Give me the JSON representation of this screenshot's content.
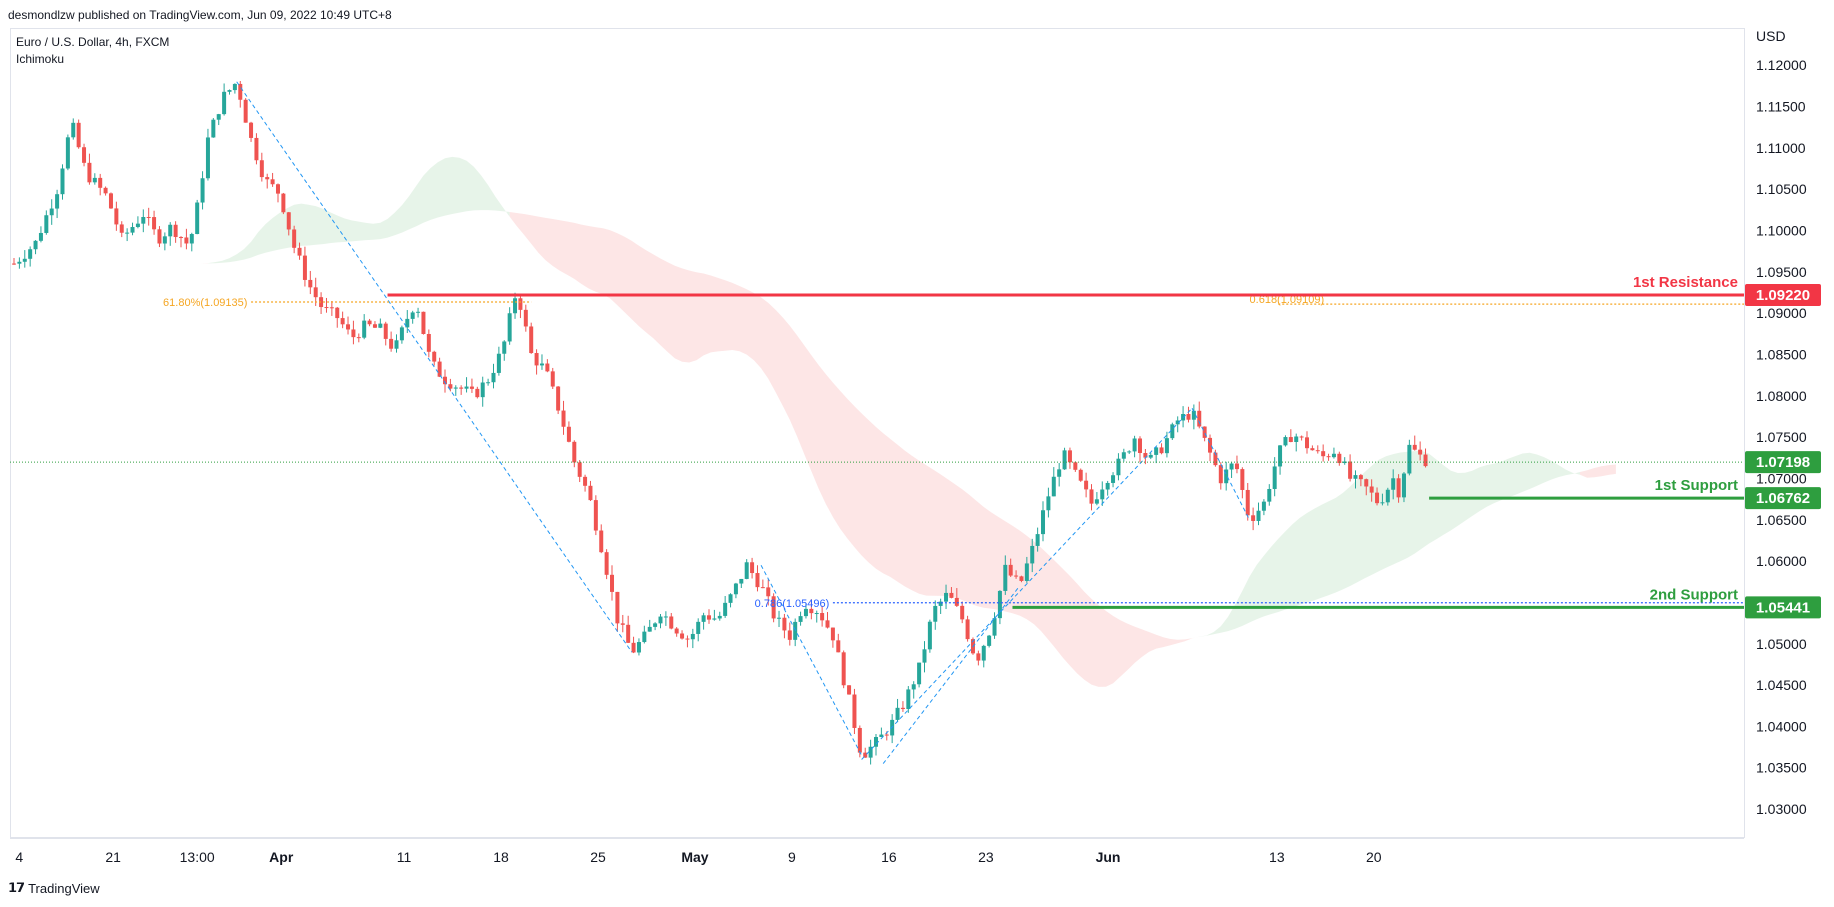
{
  "header": {
    "publisher_line": "desmondlzw published on TradingView.com, Jun 09, 2022 10:49 UTC+8"
  },
  "legend": {
    "symbol": "Euro / U.S. Dollar, 4h, FXCM",
    "indicator": "Ichimoku"
  },
  "footer": {
    "brand": "TradingView"
  },
  "colors": {
    "up": "#26a69a",
    "down": "#ef5350",
    "resistance": "#f23645",
    "support": "#2e9e3f",
    "fib": "#f5a623",
    "fib_blue": "#2962ff",
    "cloud_red": "#fde2e2",
    "cloud_green": "#e3f2e5",
    "current": "#2e9e3f"
  },
  "chart_data": {
    "type": "candlestick",
    "symbol": "EURUSD",
    "timeframe": "4h",
    "y_axis_label": "USD",
    "ylim": [
      1.0265,
      1.1245
    ],
    "y_ticks": [
      "1.12000",
      "1.11500",
      "1.11000",
      "1.10500",
      "1.10000",
      "1.09500",
      "1.09000",
      "1.08500",
      "1.08000",
      "1.07500",
      "1.07000",
      "1.06500",
      "1.06000",
      "1.05500",
      "1.05000",
      "1.04500",
      "1.04000",
      "1.03500",
      "1.03000"
    ],
    "x_ticks": [
      "4",
      "21",
      "13:00",
      "Apr",
      "11",
      "18",
      "25",
      "May",
      "9",
      "16",
      "23",
      "Jun",
      "13",
      "20"
    ],
    "x_ticks_bold": [
      "Apr",
      "May",
      "Jun"
    ],
    "levels": [
      {
        "name": "1st Resistance",
        "value": 1.0922,
        "label": "1.09220",
        "kind": "resistance"
      },
      {
        "name": "1st Support",
        "value": 1.06762,
        "label": "1.06762",
        "kind": "support"
      },
      {
        "name": "2nd Support",
        "value": 1.05441,
        "label": "1.05441",
        "kind": "support"
      }
    ],
    "current_price": {
      "value": 1.07198,
      "label": "1.07198"
    },
    "fib_annotations": [
      {
        "label": "61.80%(1.09135)",
        "value": 1.09135
      },
      {
        "label": "0.618(1.09109)",
        "value": 1.09109
      },
      {
        "label": "0.786(1.05496)",
        "value": 1.05496
      }
    ],
    "price_path": [
      {
        "t": 0,
        "p": 1.096
      },
      {
        "t": 3,
        "p": 1.0985
      },
      {
        "t": 6,
        "p": 1.105
      },
      {
        "t": 8,
        "p": 1.113
      },
      {
        "t": 10,
        "p": 1.107
      },
      {
        "t": 13,
        "p": 1.104
      },
      {
        "t": 15,
        "p": 1.099
      },
      {
        "t": 18,
        "p": 1.102
      },
      {
        "t": 20,
        "p": 1.099
      },
      {
        "t": 22,
        "p": 1.1005
      },
      {
        "t": 24,
        "p": 1.0985
      },
      {
        "t": 25,
        "p": 1.1
      },
      {
        "t": 27,
        "p": 1.111
      },
      {
        "t": 29,
        "p": 1.116
      },
      {
        "t": 31,
        "p": 1.118
      },
      {
        "t": 33,
        "p": 1.111
      },
      {
        "t": 35,
        "p": 1.106
      },
      {
        "t": 37,
        "p": 1.1045
      },
      {
        "t": 39,
        "p": 1.098
      },
      {
        "t": 41,
        "p": 1.0935
      },
      {
        "t": 43,
        "p": 1.0905
      },
      {
        "t": 45,
        "p": 1.0895
      },
      {
        "t": 47,
        "p": 1.087
      },
      {
        "t": 49,
        "p": 1.0885
      },
      {
        "t": 51,
        "p": 1.088
      },
      {
        "t": 53,
        "p": 1.0855
      },
      {
        "t": 55,
        "p": 1.09
      },
      {
        "t": 56,
        "p": 1.0915
      },
      {
        "t": 58,
        "p": 1.084
      },
      {
        "t": 60,
        "p": 1.082
      },
      {
        "t": 62,
        "p": 1.081
      },
      {
        "t": 64,
        "p": 1.08
      },
      {
        "t": 66,
        "p": 1.082
      },
      {
        "t": 68,
        "p": 1.0855
      },
      {
        "t": 70,
        "p": 1.093
      },
      {
        "t": 72,
        "p": 1.085
      },
      {
        "t": 74,
        "p": 1.083
      },
      {
        "t": 76,
        "p": 1.078
      },
      {
        "t": 78,
        "p": 1.072
      },
      {
        "t": 80,
        "p": 1.068
      },
      {
        "t": 82,
        "p": 1.061
      },
      {
        "t": 84,
        "p": 1.053
      },
      {
        "t": 86,
        "p": 1.049
      },
      {
        "t": 88,
        "p": 1.051
      },
      {
        "t": 90,
        "p": 1.054
      },
      {
        "t": 92,
        "p": 1.052
      },
      {
        "t": 94,
        "p": 1.0505
      },
      {
        "t": 96,
        "p": 1.0535
      },
      {
        "t": 98,
        "p": 1.053
      },
      {
        "t": 100,
        "p": 1.056
      },
      {
        "t": 102,
        "p": 1.0595
      },
      {
        "t": 104,
        "p": 1.057
      },
      {
        "t": 106,
        "p": 1.053
      },
      {
        "t": 108,
        "p": 1.051
      },
      {
        "t": 110,
        "p": 1.055
      },
      {
        "t": 112,
        "p": 1.054
      },
      {
        "t": 114,
        "p": 1.051
      },
      {
        "t": 116,
        "p": 1.044
      },
      {
        "t": 118,
        "p": 1.0365
      },
      {
        "t": 120,
        "p": 1.038
      },
      {
        "t": 122,
        "p": 1.04
      },
      {
        "t": 124,
        "p": 1.043
      },
      {
        "t": 126,
        "p": 1.047
      },
      {
        "t": 128,
        "p": 1.054
      },
      {
        "t": 130,
        "p": 1.056
      },
      {
        "t": 132,
        "p": 1.053
      },
      {
        "t": 134,
        "p": 1.048
      },
      {
        "t": 136,
        "p": 1.052
      },
      {
        "t": 138,
        "p": 1.059
      },
      {
        "t": 140,
        "p": 1.057
      },
      {
        "t": 142,
        "p": 1.062
      },
      {
        "t": 144,
        "p": 1.068
      },
      {
        "t": 146,
        "p": 1.073
      },
      {
        "t": 148,
        "p": 1.07
      },
      {
        "t": 150,
        "p": 1.067
      },
      {
        "t": 152,
        "p": 1.07
      },
      {
        "t": 154,
        "p": 1.072
      },
      {
        "t": 156,
        "p": 1.075
      },
      {
        "t": 158,
        "p": 1.072
      },
      {
        "t": 160,
        "p": 1.074
      },
      {
        "t": 162,
        "p": 1.077
      },
      {
        "t": 164,
        "p": 1.078
      },
      {
        "t": 166,
        "p": 1.074
      },
      {
        "t": 168,
        "p": 1.07
      },
      {
        "t": 170,
        "p": 1.072
      },
      {
        "t": 172,
        "p": 1.065
      },
      {
        "t": 174,
        "p": 1.067
      },
      {
        "t": 176,
        "p": 1.073
      },
      {
        "t": 178,
        "p": 1.0755
      },
      {
        "t": 180,
        "p": 1.074
      },
      {
        "t": 182,
        "p": 1.0725
      },
      {
        "t": 184,
        "p": 1.0735
      },
      {
        "t": 186,
        "p": 1.07
      },
      {
        "t": 188,
        "p": 1.069
      },
      {
        "t": 190,
        "p": 1.067
      },
      {
        "t": 192,
        "p": 1.07
      },
      {
        "t": 193,
        "p": 1.068
      },
      {
        "t": 194,
        "p": 1.074
      },
      {
        "t": 196,
        "p": 1.0725
      },
      {
        "t": 197,
        "p": 1.072
      }
    ]
  }
}
